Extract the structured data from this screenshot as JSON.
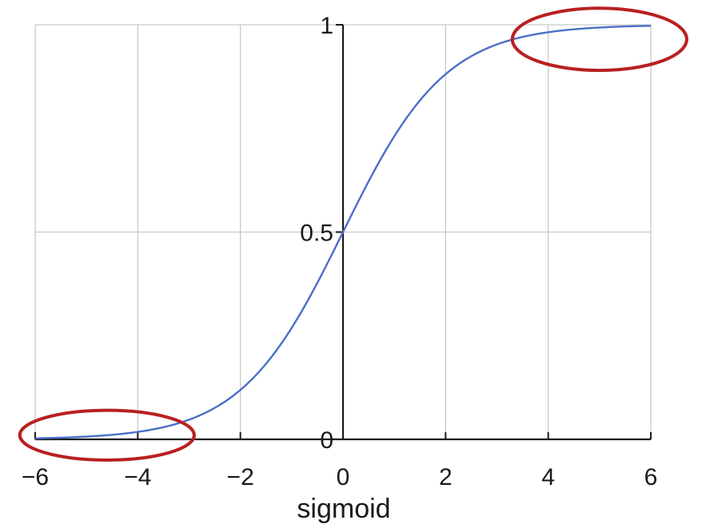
{
  "chart_data": {
    "type": "line",
    "title": "",
    "xlabel": "sigmoid",
    "ylabel": "",
    "xlim": [
      -6,
      6
    ],
    "ylim": [
      0,
      1
    ],
    "grid": true,
    "x_ticks": [
      -6,
      -4,
      -2,
      0,
      2,
      4,
      6
    ],
    "x_tick_labels": [
      "−6",
      "−4",
      "−2",
      "0",
      "2",
      "4",
      "6"
    ],
    "y_ticks": [
      0,
      0.5,
      1
    ],
    "y_tick_labels": [
      "0",
      "0.5",
      "1"
    ],
    "series": [
      {
        "function": "1/(1+exp(-x))",
        "color": "#4a6fc8",
        "x": [
          -6,
          -5,
          -4,
          -3,
          -2,
          -1,
          0,
          1,
          2,
          3,
          4,
          5,
          6
        ],
        "values": [
          0.0025,
          0.0067,
          0.018,
          0.047,
          0.119,
          0.269,
          0.5,
          0.731,
          0.881,
          0.953,
          0.982,
          0.9933,
          0.9975
        ]
      }
    ],
    "annotations": [
      {
        "type": "ellipse",
        "color": "#b8201f",
        "x_range": [
          -6.3,
          -2.9
        ],
        "y_range": [
          -0.05,
          0.07
        ]
      },
      {
        "type": "ellipse",
        "color": "#b8201f",
        "x_range": [
          3.3,
          6.7
        ],
        "y_range": [
          0.89,
          1.04
        ]
      }
    ]
  }
}
